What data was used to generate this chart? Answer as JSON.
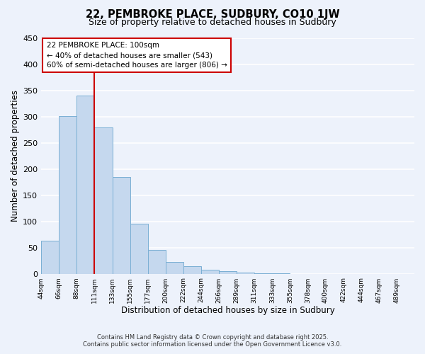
{
  "title": "22, PEMBROKE PLACE, SUDBURY, CO10 1JW",
  "subtitle": "Size of property relative to detached houses in Sudbury",
  "xlabel": "Distribution of detached houses by size in Sudbury",
  "ylabel": "Number of detached properties",
  "bar_values": [
    63,
    301,
    340,
    280,
    185,
    95,
    45,
    22,
    14,
    7,
    5,
    2,
    1,
    1,
    0,
    0,
    0,
    0,
    0,
    0,
    0
  ],
  "bar_labels": [
    "44sqm",
    "66sqm",
    "88sqm",
    "111sqm",
    "133sqm",
    "155sqm",
    "177sqm",
    "200sqm",
    "222sqm",
    "244sqm",
    "266sqm",
    "289sqm",
    "311sqm",
    "333sqm",
    "355sqm",
    "378sqm",
    "400sqm",
    "422sqm",
    "444sqm",
    "467sqm",
    "489sqm"
  ],
  "bar_color": "#c5d8ee",
  "bar_edge_color": "#7aafd4",
  "vline_color": "#cc0000",
  "annotation_title": "22 PEMBROKE PLACE: 100sqm",
  "annotation_line1": "← 40% of detached houses are smaller (543)",
  "annotation_line2": "60% of semi-detached houses are larger (806) →",
  "annotation_box_color": "white",
  "annotation_box_edge": "#cc0000",
  "ylim": [
    0,
    450
  ],
  "yticks": [
    0,
    50,
    100,
    150,
    200,
    250,
    300,
    350,
    400,
    450
  ],
  "footer1": "Contains HM Land Registry data © Crown copyright and database right 2025.",
  "footer2": "Contains public sector information licensed under the Open Government Licence v3.0.",
  "bg_color": "#edf2fb",
  "grid_color": "white"
}
